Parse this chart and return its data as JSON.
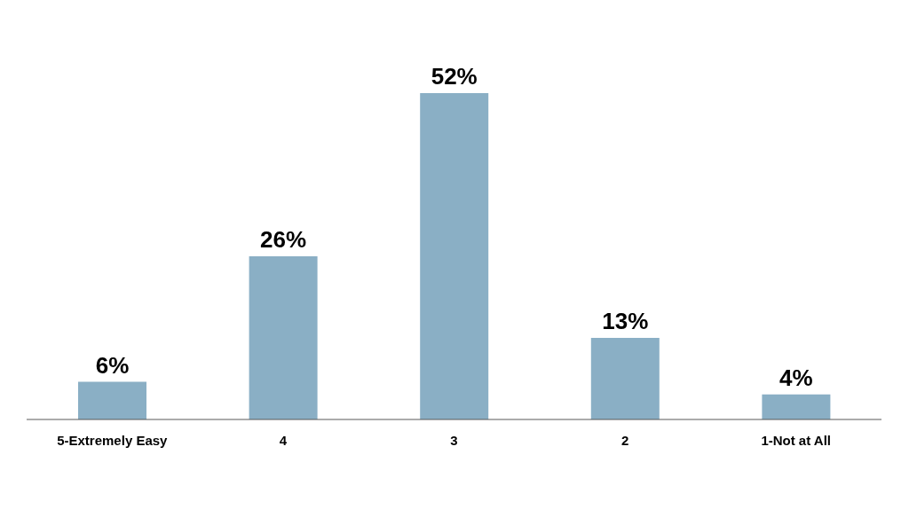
{
  "chart_data": {
    "type": "bar",
    "categories": [
      "5-Extremely Easy",
      "4",
      "3",
      "2",
      "1-Not at All"
    ],
    "values": [
      6,
      26,
      52,
      13,
      4
    ],
    "value_labels": [
      "6%",
      "26%",
      "52%",
      "13%",
      "4%"
    ],
    "color": "#8aafc5",
    "grid": false,
    "legend": false
  }
}
